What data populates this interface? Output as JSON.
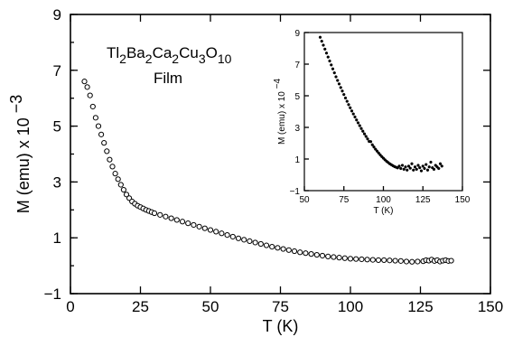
{
  "chart_data": [
    {
      "type": "scatter",
      "title": "",
      "annotation": {
        "compound_parts": [
          {
            "t": "Tl",
            "sub": false
          },
          {
            "t": "2",
            "sub": true
          },
          {
            "t": "Ba",
            "sub": false
          },
          {
            "t": "2",
            "sub": true
          },
          {
            "t": "Ca",
            "sub": false
          },
          {
            "t": "2",
            "sub": true
          },
          {
            "t": "Cu",
            "sub": false
          },
          {
            "t": "3",
            "sub": true
          },
          {
            "t": "O",
            "sub": false
          },
          {
            "t": "10",
            "sub": true
          }
        ],
        "sample": "Film"
      },
      "xlabel": "T (K)",
      "ylabel": "M (emu) x 10",
      "ylabel_exponent": "−3",
      "xlim": [
        0,
        150
      ],
      "ylim": [
        -1,
        9
      ],
      "xticks": [
        "0",
        "25",
        "50",
        "75",
        "100",
        "125",
        "150"
      ],
      "yticks": [
        "−1",
        "1",
        "3",
        "5",
        "7",
        "9"
      ],
      "grid": false,
      "marker": "open-circle",
      "series": [
        {
          "x": [
            5,
            6,
            7,
            8,
            9,
            10,
            11,
            12,
            13,
            14,
            15,
            16,
            17,
            18,
            19,
            20,
            21,
            22,
            23,
            24,
            25,
            26,
            27,
            28,
            29,
            30,
            32,
            34,
            36,
            38,
            40,
            42,
            44,
            46,
            48,
            50,
            52,
            54,
            56,
            58,
            60,
            62,
            64,
            66,
            68,
            70,
            72,
            74,
            76,
            78,
            80,
            82,
            84,
            86,
            88,
            90,
            92,
            94,
            96,
            98,
            100,
            102,
            104,
            106,
            108,
            110,
            112,
            114,
            116,
            118,
            120,
            122,
            124,
            126,
            127,
            128,
            129,
            130,
            131,
            132,
            133,
            134,
            135,
            136
          ],
          "y": [
            6.6,
            6.4,
            6.1,
            5.7,
            5.3,
            5.0,
            4.7,
            4.4,
            4.1,
            3.8,
            3.55,
            3.3,
            3.1,
            2.9,
            2.72,
            2.55,
            2.42,
            2.3,
            2.22,
            2.15,
            2.1,
            2.05,
            2.0,
            1.96,
            1.92,
            1.88,
            1.82,
            1.76,
            1.7,
            1.64,
            1.58,
            1.52,
            1.46,
            1.4,
            1.34,
            1.28,
            1.22,
            1.16,
            1.1,
            1.04,
            0.98,
            0.93,
            0.88,
            0.83,
            0.78,
            0.73,
            0.68,
            0.64,
            0.6,
            0.56,
            0.52,
            0.48,
            0.45,
            0.42,
            0.39,
            0.36,
            0.33,
            0.31,
            0.29,
            0.27,
            0.25,
            0.24,
            0.23,
            0.22,
            0.21,
            0.2,
            0.2,
            0.19,
            0.18,
            0.17,
            0.15,
            0.14,
            0.15,
            0.16,
            0.2,
            0.18,
            0.22,
            0.17,
            0.2,
            0.15,
            0.18,
            0.2,
            0.17,
            0.18
          ]
        }
      ]
    },
    {
      "type": "scatter",
      "title": "",
      "xlabel": "T (K)",
      "ylabel": "M (emu) x 10",
      "ylabel_exponent": "−4",
      "xlim": [
        50,
        150
      ],
      "ylim": [
        -1,
        9
      ],
      "xticks": [
        "50",
        "75",
        "100",
        "125",
        "150"
      ],
      "yticks": [
        "−1",
        "1",
        "3",
        "5",
        "7",
        "9"
      ],
      "grid": false,
      "marker": "filled-dot",
      "series": [
        {
          "x": [
            60,
            61,
            62,
            63,
            64,
            65,
            66,
            67,
            68,
            69,
            70,
            71,
            72,
            73,
            74,
            75,
            76,
            77,
            78,
            79,
            80,
            81,
            82,
            83,
            84,
            85,
            86,
            87,
            88,
            89,
            90,
            91,
            92,
            93,
            94,
            95,
            96,
            97,
            98,
            99,
            100,
            101,
            102,
            103,
            104,
            105,
            106,
            107,
            108,
            109,
            110,
            111,
            112,
            113,
            114,
            115,
            116,
            117,
            118,
            119,
            120,
            121,
            122,
            123,
            124,
            125,
            126,
            127,
            128,
            129,
            130,
            131,
            132,
            133,
            134,
            135,
            136,
            137
          ],
          "y": [
            8.7,
            8.45,
            8.2,
            7.95,
            7.7,
            7.45,
            7.2,
            6.95,
            6.7,
            6.45,
            6.2,
            5.97,
            5.75,
            5.52,
            5.3,
            5.08,
            4.86,
            4.65,
            4.44,
            4.24,
            4.04,
            3.85,
            3.66,
            3.47,
            3.29,
            3.11,
            2.93,
            2.76,
            2.59,
            2.43,
            2.27,
            2.11,
            2.1,
            1.9,
            1.76,
            1.62,
            1.5,
            1.38,
            1.26,
            1.15,
            1.05,
            0.95,
            0.86,
            0.78,
            0.7,
            0.64,
            0.58,
            0.52,
            0.48,
            0.44,
            0.55,
            0.4,
            0.6,
            0.35,
            0.5,
            0.3,
            0.55,
            0.42,
            0.7,
            0.3,
            0.5,
            0.35,
            0.6,
            0.45,
            0.25,
            0.55,
            0.4,
            0.65,
            0.3,
            0.5,
            0.8,
            0.45,
            0.35,
            0.6,
            0.5,
            0.4,
            0.7,
            0.55
          ]
        }
      ]
    }
  ]
}
